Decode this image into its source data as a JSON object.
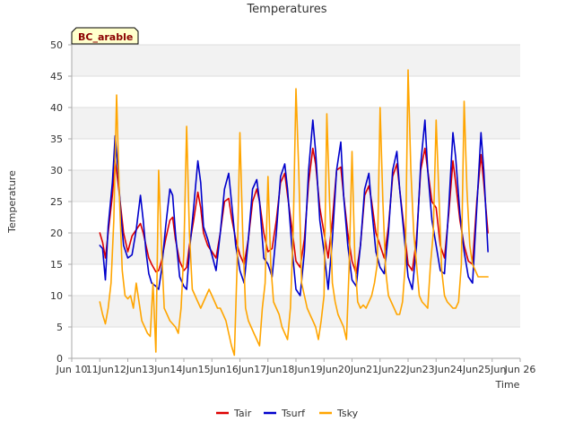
{
  "chart_data": {
    "type": "line",
    "title": "Temperatures",
    "site_label": "BC_arable",
    "xlabel": "Time",
    "ylabel": "Temperature",
    "ylim": [
      0,
      50
    ],
    "yticks": [
      0,
      5,
      10,
      15,
      20,
      25,
      30,
      35,
      40,
      45,
      50
    ],
    "xlim": [
      10,
      26
    ],
    "xticks": [
      10,
      11,
      12,
      13,
      14,
      15,
      16,
      17,
      18,
      19,
      20,
      21,
      22,
      23,
      24,
      25,
      26
    ],
    "xtick_labels": [
      "Jun 10",
      "11Jun",
      "12Jun",
      "13Jun",
      "14Jun",
      "15Jun",
      "16Jun",
      "17Jun",
      "18Jun",
      "19Jun",
      "20Jun",
      "21Jun",
      "22Jun",
      "23Jun",
      "24Jun",
      "25Jun",
      "Jun 26"
    ],
    "grid": "horizontal bands",
    "legend_position": "bottom-center",
    "series": [
      {
        "name": "Tair",
        "color": "#dd0000",
        "x": [
          11.0,
          11.1,
          11.2,
          11.3,
          11.45,
          11.55,
          11.65,
          11.75,
          11.85,
          12.0,
          12.15,
          12.3,
          12.45,
          12.55,
          12.65,
          12.75,
          12.85,
          13.0,
          13.1,
          13.2,
          13.35,
          13.5,
          13.6,
          13.7,
          13.85,
          14.0,
          14.1,
          14.2,
          14.35,
          14.5,
          14.6,
          14.7,
          14.85,
          15.0,
          15.15,
          15.3,
          15.45,
          15.6,
          15.7,
          15.85,
          16.0,
          16.15,
          16.3,
          16.45,
          16.6,
          16.7,
          16.85,
          17.0,
          17.15,
          17.3,
          17.45,
          17.6,
          17.7,
          17.85,
          18.0,
          18.15,
          18.3,
          18.45,
          18.6,
          18.7,
          18.85,
          19.0,
          19.15,
          19.3,
          19.45,
          19.6,
          19.7,
          19.85,
          20.0,
          20.15,
          20.3,
          20.45,
          20.6,
          20.7,
          20.85,
          21.0,
          21.15,
          21.3,
          21.45,
          21.6,
          21.7,
          21.85,
          22.0,
          22.15,
          22.3,
          22.45,
          22.6,
          22.7,
          22.85,
          23.0,
          23.15,
          23.3,
          23.45,
          23.6,
          23.7,
          23.85,
          24.0,
          24.15,
          24.3,
          24.45,
          24.6,
          24.7,
          24.85
        ],
        "y": [
          20.0,
          18.5,
          16.0,
          20.0,
          26.0,
          31.5,
          28.0,
          24.0,
          20.0,
          17.0,
          19.5,
          20.5,
          21.5,
          20.0,
          18.0,
          16.0,
          15.0,
          13.8,
          14.0,
          15.5,
          19.0,
          22.0,
          22.5,
          19.0,
          15.5,
          14.0,
          14.5,
          18.0,
          22.0,
          26.5,
          24.0,
          20.0,
          18.0,
          17.0,
          16.0,
          20.0,
          25.0,
          25.5,
          22.5,
          19.0,
          16.5,
          15.0,
          19.0,
          25.0,
          27.0,
          25.0,
          20.0,
          17.0,
          17.5,
          22.0,
          28.0,
          29.5,
          26.0,
          21.0,
          15.5,
          14.5,
          19.0,
          28.0,
          33.5,
          31.0,
          24.0,
          20.0,
          16.0,
          22.0,
          30.0,
          30.5,
          26.0,
          20.0,
          15.5,
          13.5,
          18.0,
          26.0,
          27.5,
          25.0,
          20.0,
          18.0,
          16.0,
          21.0,
          29.0,
          31.0,
          27.0,
          21.0,
          15.0,
          14.0,
          19.0,
          30.0,
          33.5,
          30.0,
          25.0,
          24.0,
          18.0,
          16.0,
          23.0,
          31.5,
          28.0,
          22.0,
          18.0,
          15.5,
          15.0,
          25.0,
          32.5,
          28.0,
          20.0
        ]
      },
      {
        "name": "Tsurf",
        "color": "#0000cc",
        "x": [
          11.0,
          11.1,
          11.2,
          11.3,
          11.45,
          11.55,
          11.65,
          11.75,
          11.85,
          12.0,
          12.15,
          12.3,
          12.45,
          12.55,
          12.65,
          12.75,
          12.85,
          13.0,
          13.1,
          13.2,
          13.35,
          13.5,
          13.6,
          13.7,
          13.85,
          14.0,
          14.1,
          14.2,
          14.35,
          14.5,
          14.6,
          14.7,
          14.85,
          15.0,
          15.15,
          15.3,
          15.45,
          15.6,
          15.7,
          15.85,
          16.0,
          16.15,
          16.3,
          16.45,
          16.6,
          16.7,
          16.85,
          17.0,
          17.15,
          17.3,
          17.45,
          17.6,
          17.7,
          17.85,
          18.0,
          18.15,
          18.3,
          18.45,
          18.6,
          18.7,
          18.85,
          19.0,
          19.15,
          19.3,
          19.45,
          19.6,
          19.7,
          19.85,
          20.0,
          20.15,
          20.3,
          20.45,
          20.6,
          20.7,
          20.85,
          21.0,
          21.15,
          21.3,
          21.45,
          21.6,
          21.7,
          21.85,
          22.0,
          22.15,
          22.3,
          22.45,
          22.6,
          22.7,
          22.85,
          23.0,
          23.15,
          23.3,
          23.45,
          23.6,
          23.7,
          23.85,
          24.0,
          24.15,
          24.3,
          24.45,
          24.6,
          24.7,
          24.85
        ],
        "y": [
          18.0,
          17.5,
          12.5,
          21.0,
          28.0,
          35.5,
          30.0,
          23.0,
          18.0,
          16.0,
          16.5,
          20.5,
          26.0,
          22.0,
          17.0,
          13.5,
          12.0,
          11.5,
          11.0,
          14.0,
          21.0,
          27.0,
          26.0,
          20.0,
          13.0,
          11.5,
          11.0,
          17.0,
          24.0,
          31.5,
          28.0,
          21.0,
          19.0,
          16.5,
          14.0,
          20.0,
          27.0,
          29.5,
          25.0,
          18.0,
          14.0,
          12.0,
          19.0,
          27.0,
          28.5,
          25.0,
          16.0,
          15.0,
          13.0,
          20.0,
          29.0,
          31.0,
          27.0,
          18.0,
          11.0,
          10.0,
          17.0,
          30.0,
          38.0,
          33.0,
          22.0,
          17.0,
          11.0,
          19.0,
          30.0,
          34.5,
          26.0,
          18.0,
          12.5,
          11.5,
          18.0,
          27.0,
          29.5,
          24.0,
          17.0,
          14.5,
          13.5,
          20.0,
          30.0,
          33.0,
          27.0,
          20.0,
          13.0,
          11.0,
          18.0,
          31.0,
          38.0,
          30.0,
          22.0,
          18.0,
          14.0,
          13.5,
          24.0,
          36.0,
          32.0,
          23.0,
          17.0,
          13.0,
          12.0,
          24.0,
          36.0,
          30.0,
          17.0
        ]
      },
      {
        "name": "Tsky",
        "color": "#ffa500",
        "x": [
          11.0,
          11.1,
          11.2,
          11.3,
          11.4,
          11.5,
          11.6,
          11.7,
          11.8,
          11.9,
          12.0,
          12.1,
          12.2,
          12.3,
          12.4,
          12.5,
          12.6,
          12.7,
          12.8,
          12.9,
          13.0,
          13.1,
          13.2,
          13.3,
          13.4,
          13.5,
          13.6,
          13.7,
          13.8,
          13.9,
          14.0,
          14.1,
          14.2,
          14.3,
          14.4,
          14.5,
          14.6,
          14.7,
          14.8,
          14.9,
          15.0,
          15.1,
          15.2,
          15.3,
          15.4,
          15.5,
          15.6,
          15.7,
          15.8,
          15.9,
          16.0,
          16.1,
          16.2,
          16.3,
          16.4,
          16.5,
          16.6,
          16.7,
          16.8,
          16.9,
          17.0,
          17.1,
          17.2,
          17.3,
          17.4,
          17.5,
          17.6,
          17.7,
          17.8,
          17.9,
          18.0,
          18.1,
          18.2,
          18.3,
          18.4,
          18.5,
          18.6,
          18.7,
          18.8,
          18.9,
          19.0,
          19.1,
          19.2,
          19.3,
          19.4,
          19.5,
          19.6,
          19.7,
          19.8,
          19.9,
          20.0,
          20.1,
          20.2,
          20.3,
          20.4,
          20.5,
          20.6,
          20.7,
          20.8,
          20.9,
          21.0,
          21.1,
          21.2,
          21.3,
          21.4,
          21.5,
          21.6,
          21.7,
          21.8,
          21.9,
          22.0,
          22.1,
          22.2,
          22.3,
          22.4,
          22.5,
          22.6,
          22.7,
          22.8,
          22.9,
          23.0,
          23.1,
          23.2,
          23.3,
          23.4,
          23.5,
          23.6,
          23.7,
          23.8,
          23.9,
          24.0,
          24.1,
          24.2,
          24.3,
          24.4,
          24.5,
          24.6,
          24.7,
          24.8,
          24.85
        ],
        "y": [
          9.0,
          7.0,
          5.5,
          8.0,
          12.0,
          22.0,
          42.0,
          26.0,
          14.0,
          10.0,
          9.5,
          10.0,
          8.0,
          12.0,
          9.0,
          6.0,
          5.0,
          4.0,
          3.5,
          12.0,
          1.0,
          30.0,
          18.0,
          8.0,
          7.0,
          6.0,
          5.5,
          5.0,
          4.0,
          8.0,
          17.0,
          37.0,
          20.0,
          11.0,
          10.0,
          9.0,
          8.0,
          9.0,
          10.0,
          11.0,
          10.0,
          9.0,
          8.0,
          8.0,
          7.0,
          6.0,
          4.0,
          2.0,
          0.5,
          15.0,
          36.0,
          20.0,
          8.0,
          6.0,
          5.0,
          4.0,
          3.0,
          2.0,
          8.0,
          12.0,
          29.0,
          15.0,
          9.0,
          8.0,
          7.0,
          5.0,
          4.0,
          3.0,
          8.0,
          20.0,
          43.0,
          30.0,
          12.0,
          10.0,
          8.0,
          7.0,
          6.0,
          5.0,
          3.0,
          6.0,
          10.0,
          39.0,
          25.0,
          12.0,
          9.0,
          7.0,
          6.0,
          5.0,
          3.0,
          15.0,
          33.0,
          16.0,
          9.0,
          8.0,
          8.5,
          8.0,
          9.0,
          10.0,
          12.0,
          15.0,
          40.0,
          25.0,
          14.0,
          10.0,
          9.0,
          8.0,
          7.0,
          7.0,
          9.0,
          15.0,
          46.0,
          30.0,
          20.0,
          15.0,
          10.0,
          9.0,
          8.5,
          8.0,
          15.0,
          20.0,
          38.0,
          26.0,
          14.0,
          10.0,
          9.0,
          8.5,
          8.0,
          8.0,
          9.0,
          15.0,
          41.0,
          27.0,
          18.0,
          15.0,
          14.0,
          13.0,
          13.0,
          13.0,
          13.0,
          13.0
        ]
      }
    ]
  }
}
